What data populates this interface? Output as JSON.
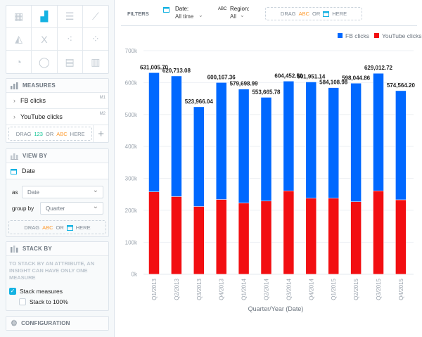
{
  "sidebar": {
    "visualization_types": [
      "table",
      "column",
      "bar",
      "line",
      "area",
      "headline",
      "scatter",
      "bubble",
      "pie",
      "donut",
      "treemap",
      "heatmap"
    ],
    "selected_type": "column",
    "measures": {
      "title": "MEASURES",
      "items": [
        {
          "label": "FB clicks",
          "tag": "M1"
        },
        {
          "label": "YouTube clicks",
          "tag": "M2"
        }
      ],
      "drag": {
        "drag": "DRAG",
        "num": "123",
        "or": "OR",
        "abc": "ABC",
        "here": "HERE"
      },
      "add": "+"
    },
    "view_by": {
      "title": "VIEW BY",
      "item": "Date",
      "as_label": "as",
      "as_value": "Date",
      "group_label": "group by",
      "group_value": "Quarter",
      "drag": {
        "drag": "DRAG",
        "abc": "ABC",
        "or": "OR",
        "here": "HERE"
      }
    },
    "stack_by": {
      "title": "STACK BY",
      "note": "TO STACK BY AN ATTRIBUTE, AN INSIGHT CAN HAVE ONLY ONE MEASURE",
      "stack_measures": "Stack measures",
      "stack_measures_checked": true,
      "stack_100": "Stack to 100%",
      "stack_100_checked": false
    },
    "configuration": {
      "title": "CONFIGURATION"
    }
  },
  "filters": {
    "title": "FILTERS",
    "date_label": "Date:",
    "date_value": "All time",
    "region_abc": "ABC",
    "region_label": "Region:",
    "region_value": "All",
    "drag": {
      "drag": "DRAG",
      "abc": "ABC",
      "or": "OR",
      "here": "HERE"
    }
  },
  "colors": {
    "fb": "#0068ff",
    "youtube": "#f20e11",
    "accent": "#14b2e2"
  },
  "chart_data": {
    "type": "bar",
    "stacked": true,
    "categories": [
      "Q1/2013",
      "Q2/2013",
      "Q3/2013",
      "Q4/2013",
      "Q1/2014",
      "Q2/2014",
      "Q3/2014",
      "Q4/2014",
      "Q1/2015",
      "Q2/2015",
      "Q3/2015",
      "Q4/2015"
    ],
    "series": [
      {
        "name": "FB clicks",
        "values": [
          373006,
          377713,
          311966,
          366167,
          356699,
          324666,
          343453,
          363951,
          346109,
          371045,
          368013,
          341564
        ]
      },
      {
        "name": "YouTube clicks",
        "values": [
          258000,
          243000,
          212000,
          234000,
          223000,
          229000,
          261000,
          238000,
          238000,
          227000,
          261000,
          233000
        ]
      }
    ],
    "total_labels": [
      "631,005.70",
      "620,713.08",
      "523,966.04",
      "600,167.36",
      "579,698.99",
      "553,665.78",
      "604,452.50",
      "601,951.14",
      "584,108.98",
      "598,044.86",
      "629,012.72",
      "574,564.20"
    ],
    "xlabel": "Quarter/Year (Date)",
    "ylabel": "",
    "ylim": [
      0,
      700000
    ],
    "yticks": [
      "0k",
      "100k",
      "200k",
      "300k",
      "400k",
      "500k",
      "600k",
      "700k"
    ],
    "grid": true,
    "legend": "top-right"
  }
}
